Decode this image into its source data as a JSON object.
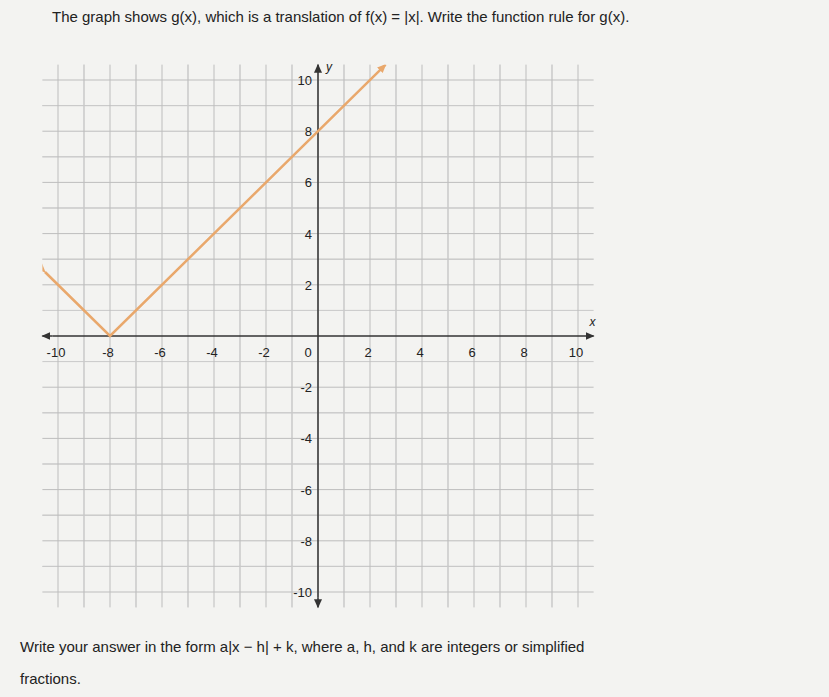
{
  "chart_data": {
    "type": "line",
    "title": "The graph shows g(x), which is a translation of f(x) = |x|. Write the function rule for g(x).",
    "annotations": [
      "Write your answer in the form a|x − h| + k, where a, h, and k are integers or simplified",
      "fractions."
    ],
    "xlabel": "x",
    "ylabel": "y",
    "x": [
      -10.5,
      -8,
      2.6
    ],
    "series": [
      {
        "color": "#e9a86c",
        "values": [
          2.5,
          0,
          10.6
        ]
      }
    ],
    "xlim": [
      -10.6,
      10.6
    ],
    "ylim": [
      -10.6,
      10.6
    ],
    "xticks": [
      -10,
      -8,
      -6,
      -4,
      -2,
      0,
      2,
      4,
      6,
      8,
      10
    ],
    "yticks": [
      -10,
      -8,
      -6,
      -4,
      -2,
      2,
      4,
      6,
      8,
      10
    ],
    "grid": true
  }
}
